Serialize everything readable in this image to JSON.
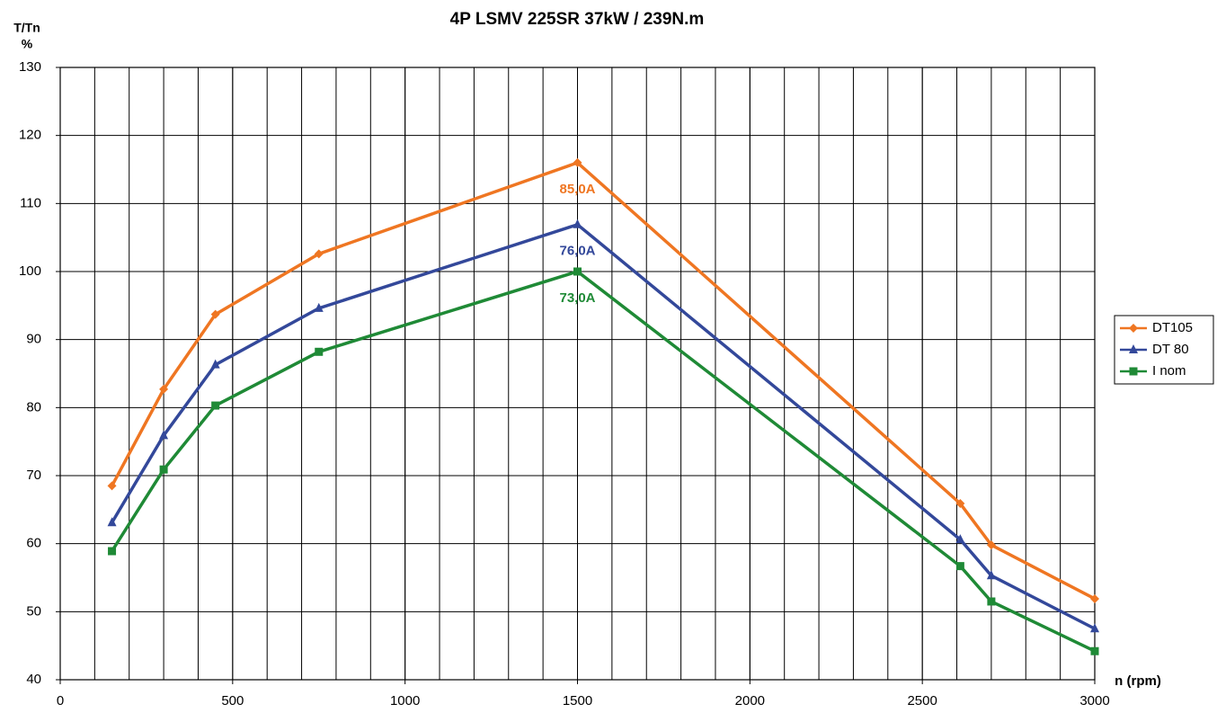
{
  "chart_data": {
    "type": "line",
    "title": "4P LSMV 225SR 37kW / 239N.m",
    "ylabel": [
      "T/Tn",
      "%"
    ],
    "xlabel": "n (rpm)",
    "xlim": [
      0,
      3000
    ],
    "xticks": [
      0,
      500,
      1000,
      1500,
      2000,
      2500,
      3000
    ],
    "xminor": 100,
    "ylim": [
      40,
      130
    ],
    "yticks": [
      40,
      50,
      60,
      70,
      80,
      90,
      100,
      110,
      120,
      130
    ],
    "grid": true,
    "legend": "right",
    "series": [
      {
        "name": "DT105",
        "color": "#ef7622",
        "marker": "diamond",
        "x": [
          150,
          300,
          450,
          750,
          1500,
          2610,
          2700,
          3000
        ],
        "values": [
          68.5,
          82.7,
          93.7,
          102.6,
          116,
          65.9,
          59.8,
          51.9
        ]
      },
      {
        "name": "DT 80",
        "color": "#33489a",
        "marker": "triangle",
        "x": [
          150,
          300,
          450,
          750,
          1500,
          2610,
          2700,
          3000
        ],
        "values": [
          63.1,
          75.9,
          86.3,
          94.6,
          106.9,
          60.6,
          55.3,
          47.5
        ]
      },
      {
        "name": "I nom",
        "color": "#1f8a36",
        "marker": "square",
        "x": [
          150,
          300,
          450,
          750,
          1500,
          2610,
          2700,
          3000
        ],
        "values": [
          58.9,
          70.9,
          80.3,
          88.2,
          100,
          56.7,
          51.5,
          44.2
        ]
      }
    ],
    "annotations": [
      {
        "text": "85,0A",
        "x": 1500,
        "y": 112,
        "color": "#ef7622"
      },
      {
        "text": "76,0A",
        "x": 1500,
        "y": 103,
        "color": "#33489a"
      },
      {
        "text": "73,0A",
        "x": 1500,
        "y": 96,
        "color": "#1f8a36"
      }
    ]
  }
}
